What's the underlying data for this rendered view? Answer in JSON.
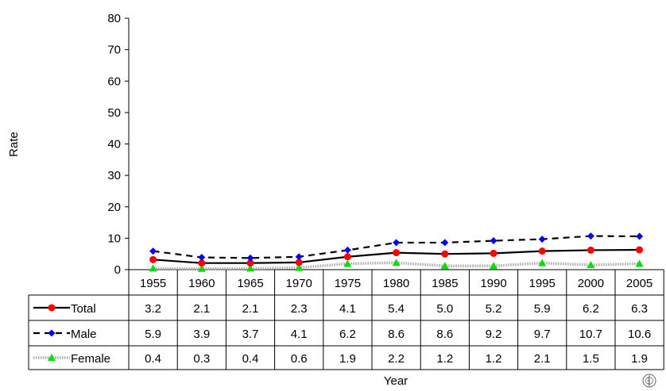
{
  "chart_data": {
    "type": "line",
    "xlabel": "Year",
    "ylabel": "Rate",
    "ylim": [
      0,
      80
    ],
    "yticks": [
      0,
      10,
      20,
      30,
      40,
      50,
      60,
      70,
      80
    ],
    "grid": false,
    "legend": "data-table-below",
    "categories": [
      "1955",
      "1960",
      "1965",
      "1970",
      "1975",
      "1980",
      "1985",
      "1990",
      "1995",
      "2000",
      "2005"
    ],
    "series": [
      {
        "name": "Total",
        "values": [
          3.2,
          2.1,
          2.1,
          2.3,
          4.1,
          5.4,
          5.0,
          5.2,
          5.9,
          6.2,
          6.3
        ],
        "labels": [
          "3.2",
          "2.1",
          "2.1",
          "2.3",
          "4.1",
          "5.4",
          "5.0",
          "5.2",
          "5.9",
          "6.2",
          "6.3"
        ],
        "color": "#ff0000",
        "line_color": "#000000",
        "line_style": "solid",
        "marker": "circle"
      },
      {
        "name": "Male",
        "values": [
          5.9,
          3.9,
          3.7,
          4.1,
          6.2,
          8.6,
          8.6,
          9.2,
          9.7,
          10.7,
          10.6
        ],
        "labels": [
          "5.9",
          "3.9",
          "3.7",
          "4.1",
          "6.2",
          "8.6",
          "8.6",
          "9.2",
          "9.7",
          "10.7",
          "10.6"
        ],
        "color": "#0000ff",
        "line_color": "#000000",
        "line_style": "dashed",
        "marker": "diamond"
      },
      {
        "name": "Female",
        "values": [
          0.4,
          0.3,
          0.4,
          0.6,
          1.9,
          2.2,
          1.2,
          1.2,
          2.1,
          1.5,
          1.9
        ],
        "labels": [
          "0.4",
          "0.3",
          "0.4",
          "0.6",
          "1.9",
          "2.2",
          "1.2",
          "1.2",
          "2.1",
          "1.5",
          "1.9"
        ],
        "color": "#00e000",
        "line_color": "#aaaaaa",
        "line_style": "dotted-band",
        "marker": "triangle"
      }
    ]
  },
  "logo": {
    "icon": "who-emblem-icon"
  }
}
